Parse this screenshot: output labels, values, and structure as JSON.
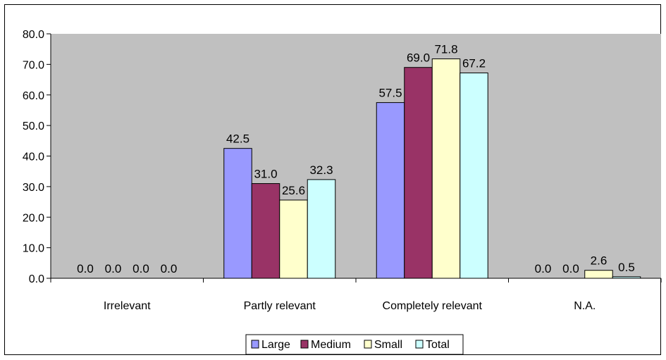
{
  "chart_data": {
    "type": "bar",
    "categories": [
      "Irrelevant",
      "Partly relevant",
      "Completely relevant",
      "N.A."
    ],
    "series": [
      {
        "name": "Large",
        "color": "#9999ff",
        "values": [
          0.0,
          42.5,
          57.5,
          0.0
        ]
      },
      {
        "name": "Medium",
        "color": "#993366",
        "values": [
          0.0,
          31.0,
          69.0,
          0.0
        ]
      },
      {
        "name": "Small",
        "color": "#ffffcc",
        "values": [
          0.0,
          25.6,
          71.8,
          2.6
        ]
      },
      {
        "name": "Total",
        "color": "#ccffff",
        "values": [
          0.0,
          32.3,
          67.2,
          0.5
        ]
      }
    ],
    "ylim": [
      0,
      80
    ],
    "yticks": [
      "0.0",
      "10.0",
      "20.0",
      "30.0",
      "40.0",
      "50.0",
      "60.0",
      "70.0",
      "80.0"
    ],
    "grid": false,
    "plot_background": "#c0c0c0",
    "legend_position": "bottom",
    "data_labels": true
  }
}
